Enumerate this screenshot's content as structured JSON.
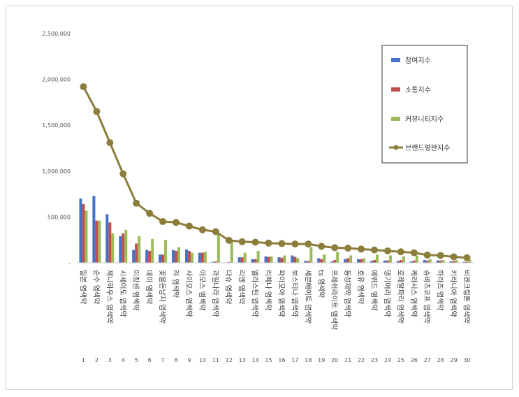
{
  "chart_data": {
    "type": "bar",
    "title": "",
    "xlabel": "",
    "ylabel": "",
    "ylim": [
      0,
      2500000
    ],
    "yticks": [
      "2,500,000",
      "2,000,000",
      "1,500,000",
      "1,000,000",
      "500,000",
      "-"
    ],
    "grid": false,
    "legend_position": "top-right",
    "categories": [
      "밀본 염색약",
      "순수 염색약",
      "제니하우스 염색약",
      "시세이도 염색약",
      "미장센 염색약",
      "데미 염색약",
      "꽃을든남자 염색약",
      "려 염색약",
      "사이오스 염색약",
      "아모스 염색약",
      "과일나라 염색약",
      "다슈 염색약",
      "리엔 염색약",
      "엘라스틴 염색약",
      "리체나 염색약",
      "파이모아 염색약",
      "보스티나 염색약",
      "세븐에이트 염색약",
      "ts 염색약",
      "프레쉬라이트 염색약",
      "동성제약 염색약",
      "호유 염색약",
      "에뛰드 염색약",
      "댕기머리 염색약",
      "로레알파리 염색약",
      "케라시스 염색약",
      "슈바츠코프 염색약",
      "하라즈 염색약",
      "키라니아 염색약",
      "비겐크림톤 염색약"
    ],
    "ranks": [
      "1",
      "2",
      "3",
      "4",
      "5",
      "6",
      "7",
      "8",
      "9",
      "10",
      "11",
      "12",
      "13",
      "14",
      "15",
      "16",
      "17",
      "18",
      "19",
      "20",
      "21",
      "22",
      "23",
      "24",
      "25",
      "26",
      "27",
      "28",
      "29",
      "30"
    ],
    "series": [
      {
        "name": "참여지수",
        "kind": "bar",
        "color": "#4472c4",
        "values": [
          700000,
          730000,
          530000,
          290000,
          140000,
          140000,
          90000,
          140000,
          145000,
          110000,
          10000,
          5000,
          60000,
          40000,
          70000,
          60000,
          80000,
          20000,
          50000,
          15000,
          40000,
          40000,
          20000,
          25000,
          20000,
          15000,
          30000,
          25000,
          15000,
          10000
        ]
      },
      {
        "name": "소통지수",
        "kind": "bar",
        "color": "#c0504d",
        "values": [
          640000,
          460000,
          440000,
          320000,
          210000,
          130000,
          90000,
          130000,
          130000,
          110000,
          15000,
          8000,
          60000,
          40000,
          65000,
          55000,
          65000,
          20000,
          40000,
          30000,
          50000,
          40000,
          30000,
          25000,
          30000,
          25000,
          25000,
          25000,
          20000,
          10000
        ]
      },
      {
        "name": "커뮤니티지수",
        "kind": "bar",
        "color": "#9bbb59",
        "values": [
          570000,
          460000,
          320000,
          360000,
          290000,
          260000,
          250000,
          170000,
          110000,
          120000,
          310000,
          230000,
          110000,
          130000,
          70000,
          80000,
          50000,
          170000,
          90000,
          120000,
          80000,
          50000,
          90000,
          80000,
          70000,
          80000,
          40000,
          30000,
          30000,
          30000
        ]
      },
      {
        "name": "브랜드평판지수",
        "kind": "line",
        "color": "#8b7d3a",
        "values": [
          1920000,
          1650000,
          1310000,
          970000,
          650000,
          540000,
          450000,
          440000,
          400000,
          360000,
          340000,
          245000,
          230000,
          225000,
          215000,
          210000,
          205000,
          205000,
          180000,
          165000,
          160000,
          150000,
          140000,
          130000,
          120000,
          110000,
          85000,
          80000,
          65000,
          55000
        ]
      }
    ]
  }
}
